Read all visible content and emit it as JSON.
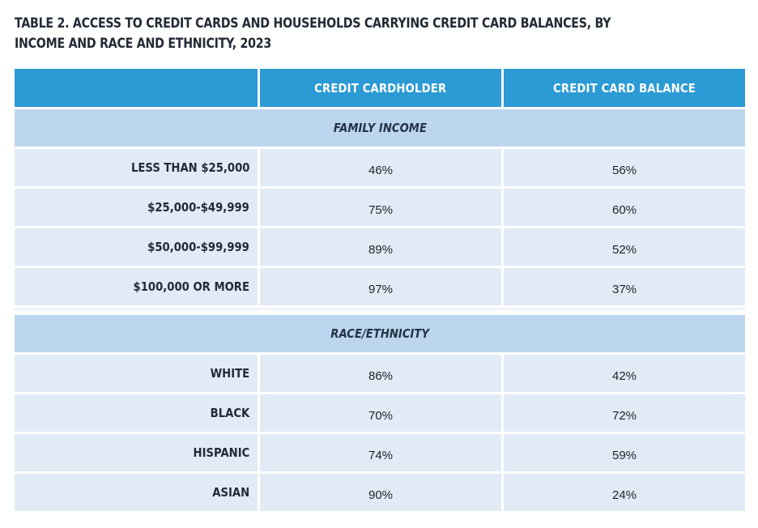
{
  "title": "TABLE 2. ACCESS TO CREDIT CARDS AND HOUSEHOLDS CARRYING CREDIT CARD BALANCES, BY INCOME AND RACE AND ETHNICITY, 2023",
  "header": {
    "col0": "",
    "col1": "CREDIT CARDHOLDER",
    "col2": "CREDIT CARD BALANCE"
  },
  "sections": [
    {
      "title": "FAMILY INCOME",
      "rows": [
        {
          "label": "LESS THAN $25,000",
          "cardholder": "46%",
          "balance": "56%"
        },
        {
          "label": "$25,000-$49,999",
          "cardholder": "75%",
          "balance": "60%"
        },
        {
          "label": "$50,000-$99,999",
          "cardholder": "89%",
          "balance": "52%"
        },
        {
          "label": "$100,000 OR MORE",
          "cardholder": "97%",
          "balance": "37%"
        }
      ]
    },
    {
      "title": "RACE/ETHNICITY",
      "rows": [
        {
          "label": "WHITE",
          "cardholder": "86%",
          "balance": "42%"
        },
        {
          "label": "BLACK",
          "cardholder": "70%",
          "balance": "72%"
        },
        {
          "label": "HISPANIC",
          "cardholder": "74%",
          "balance": "59%"
        },
        {
          "label": "ASIAN",
          "cardholder": "90%",
          "balance": "24%"
        }
      ]
    }
  ]
}
